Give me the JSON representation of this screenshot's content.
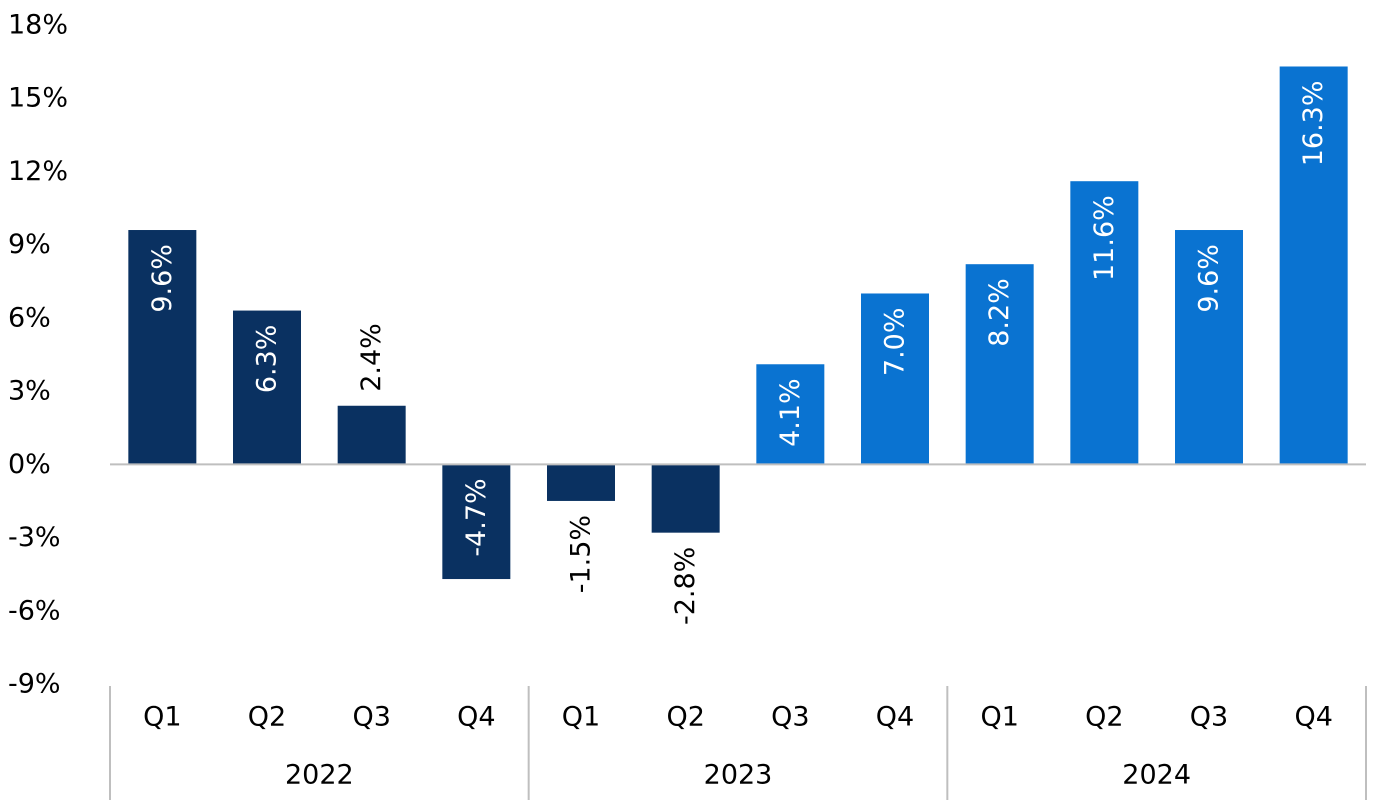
{
  "chart_data": {
    "type": "bar",
    "title": "",
    "xlabel": "",
    "ylabel": "",
    "ylim": [
      -9,
      18
    ],
    "yticks": [
      18,
      15,
      12,
      9,
      6,
      3,
      0,
      -3,
      -6,
      -9
    ],
    "ytick_labels": [
      "18%",
      "15%",
      "12%",
      "9%",
      "6%",
      "3%",
      "0%",
      "-3%",
      "-6%",
      "-9%"
    ],
    "groups": [
      {
        "label": "2022",
        "categories": [
          "Q1",
          "Q2",
          "Q3",
          "Q4"
        ]
      },
      {
        "label": "2023",
        "categories": [
          "Q1",
          "Q2",
          "Q3",
          "Q4"
        ]
      },
      {
        "label": "2024",
        "categories": [
          "Q1",
          "Q2",
          "Q3",
          "Q4"
        ]
      }
    ],
    "values": [
      9.6,
      6.3,
      2.4,
      -4.7,
      -1.5,
      -2.8,
      4.1,
      7.0,
      8.2,
      11.6,
      9.6,
      16.3
    ],
    "value_labels": [
      "9.6%",
      "6.3%",
      "2.4%",
      "-4.7%",
      "-1.5%",
      "-2.8%",
      "4.1%",
      "7.0%",
      "8.2%",
      "11.6%",
      "9.6%",
      "16.3%"
    ],
    "bar_colors": [
      "#0a3161",
      "#0a3161",
      "#0a3161",
      "#0a3161",
      "#0a3161",
      "#0a3161",
      "#0a73d1",
      "#0a73d1",
      "#0a73d1",
      "#0a73d1",
      "#0a73d1",
      "#0a73d1"
    ],
    "grid": false,
    "legend": "none"
  }
}
